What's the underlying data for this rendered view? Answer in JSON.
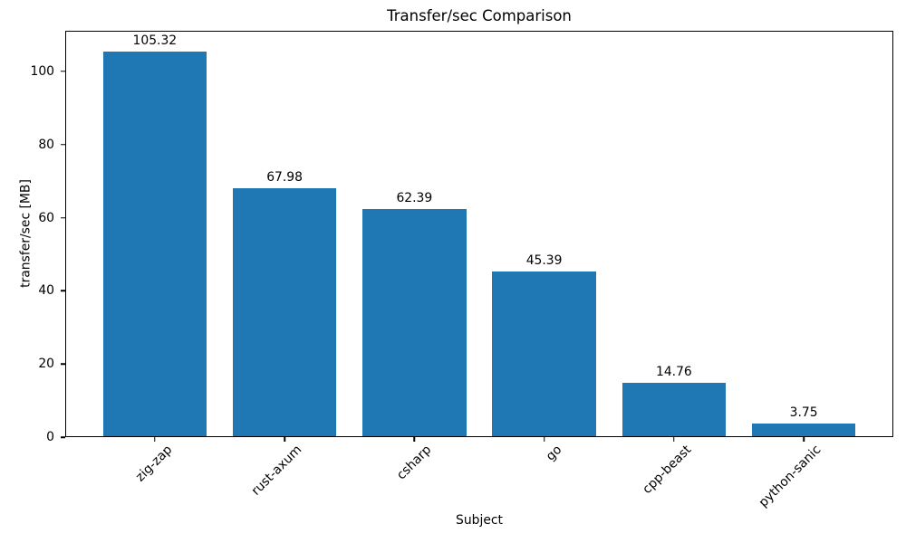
{
  "figure": {
    "background": "#ffffff"
  },
  "chart_data": {
    "type": "bar",
    "title": "Transfer/sec Comparison",
    "xlabel": "Subject",
    "ylabel": "transfer/sec [MB]",
    "categories": [
      "zig-zap",
      "rust-axum",
      "csharp",
      "go",
      "cpp-beast",
      "python-sanic"
    ],
    "values": [
      105.32,
      67.98,
      62.39,
      45.39,
      14.76,
      3.75
    ],
    "bar_labels": [
      "105.32",
      "67.98",
      "62.39",
      "45.39",
      "14.76",
      "3.75"
    ],
    "yticks": [
      0,
      20,
      40,
      60,
      80,
      100
    ],
    "ytick_labels": [
      "0",
      "20",
      "40",
      "60",
      "80",
      "100"
    ],
    "ylim": [
      0,
      111.1
    ],
    "xlim": [
      -0.69,
      5.69
    ],
    "bar_width_units": 0.8,
    "xtick_rotation_deg": 45,
    "grid": false,
    "legend": null,
    "colors": {
      "bar": "#1f77b4",
      "text": "#000000",
      "axis": "#000000",
      "background": "#ffffff"
    }
  }
}
